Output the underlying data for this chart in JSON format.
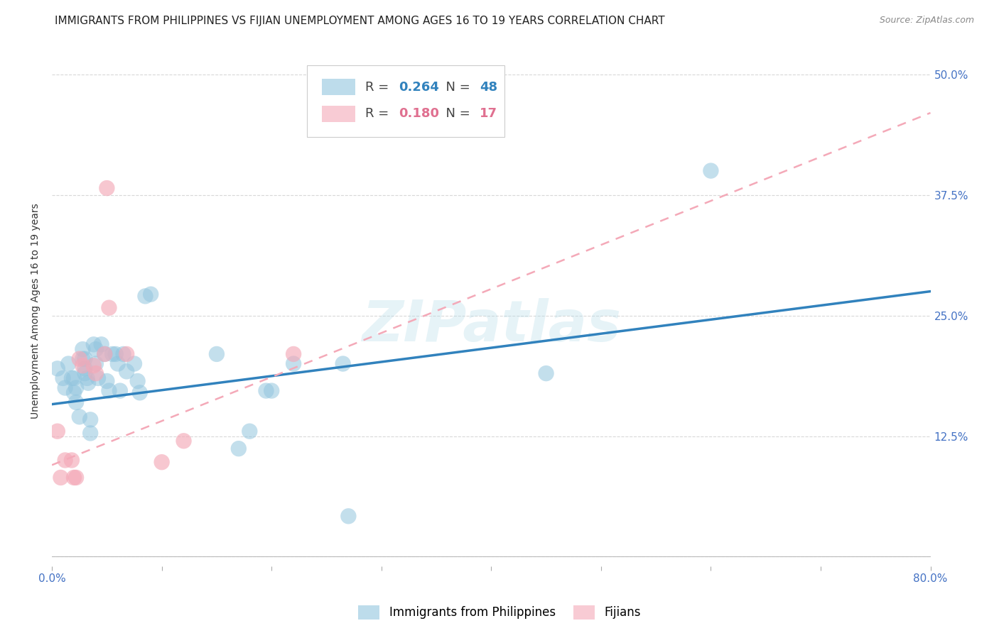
{
  "title": "IMMIGRANTS FROM PHILIPPINES VS FIJIAN UNEMPLOYMENT AMONG AGES 16 TO 19 YEARS CORRELATION CHART",
  "source": "Source: ZipAtlas.com",
  "ylabel": "Unemployment Among Ages 16 to 19 years",
  "xlim": [
    0.0,
    0.8
  ],
  "ylim": [
    -0.01,
    0.52
  ],
  "x_ticks": [
    0.0,
    0.1,
    0.2,
    0.3,
    0.4,
    0.5,
    0.6,
    0.7,
    0.8
  ],
  "x_tick_labels": [
    "0.0%",
    "",
    "",
    "",
    "",
    "",
    "",
    "",
    "80.0%"
  ],
  "y_ticks": [
    0.0,
    0.125,
    0.25,
    0.375,
    0.5
  ],
  "y_tick_labels_right": [
    "",
    "12.5%",
    "25.0%",
    "37.5%",
    "50.0%"
  ],
  "blue_R": 0.264,
  "blue_N": 48,
  "pink_R": 0.18,
  "pink_N": 17,
  "blue_color": "#92c5de",
  "pink_color": "#f4a9b8",
  "blue_line_color": "#3182bd",
  "pink_line_color": "#e08090",
  "blue_scatter_x": [
    0.005,
    0.01,
    0.012,
    0.015,
    0.018,
    0.02,
    0.02,
    0.022,
    0.022,
    0.025,
    0.028,
    0.028,
    0.03,
    0.03,
    0.03,
    0.032,
    0.033,
    0.035,
    0.035,
    0.038,
    0.04,
    0.04,
    0.042,
    0.045,
    0.048,
    0.05,
    0.052,
    0.055,
    0.058,
    0.06,
    0.062,
    0.065,
    0.068,
    0.075,
    0.078,
    0.08,
    0.085,
    0.09,
    0.15,
    0.17,
    0.18,
    0.195,
    0.2,
    0.22,
    0.265,
    0.27,
    0.45,
    0.6
  ],
  "blue_scatter_y": [
    0.195,
    0.185,
    0.175,
    0.2,
    0.185,
    0.185,
    0.17,
    0.175,
    0.16,
    0.145,
    0.215,
    0.205,
    0.205,
    0.195,
    0.19,
    0.185,
    0.18,
    0.142,
    0.128,
    0.22,
    0.215,
    0.2,
    0.185,
    0.22,
    0.21,
    0.182,
    0.172,
    0.21,
    0.21,
    0.2,
    0.172,
    0.21,
    0.192,
    0.2,
    0.182,
    0.17,
    0.27,
    0.272,
    0.21,
    0.112,
    0.13,
    0.172,
    0.172,
    0.2,
    0.2,
    0.042,
    0.19,
    0.4
  ],
  "pink_scatter_x": [
    0.005,
    0.008,
    0.012,
    0.018,
    0.02,
    0.022,
    0.025,
    0.028,
    0.038,
    0.04,
    0.048,
    0.05,
    0.052,
    0.068,
    0.1,
    0.12,
    0.22
  ],
  "pink_scatter_y": [
    0.13,
    0.082,
    0.1,
    0.1,
    0.082,
    0.082,
    0.205,
    0.198,
    0.198,
    0.19,
    0.21,
    0.382,
    0.258,
    0.21,
    0.098,
    0.12,
    0.21
  ],
  "blue_trend_x": [
    0.0,
    0.8
  ],
  "blue_trend_y": [
    0.158,
    0.275
  ],
  "pink_trend_x": [
    0.0,
    0.8
  ],
  "pink_trend_y": [
    0.095,
    0.46
  ],
  "watermark": "ZIPatlas",
  "legend_label_blue": "Immigrants from Philippines",
  "legend_label_pink": "Fijians",
  "background_color": "#ffffff",
  "grid_color": "#d8d8d8",
  "title_fontsize": 11,
  "axis_label_fontsize": 10,
  "tick_fontsize": 11,
  "tick_color_blue": "#4472c4",
  "tick_color_pink": "#e07090"
}
